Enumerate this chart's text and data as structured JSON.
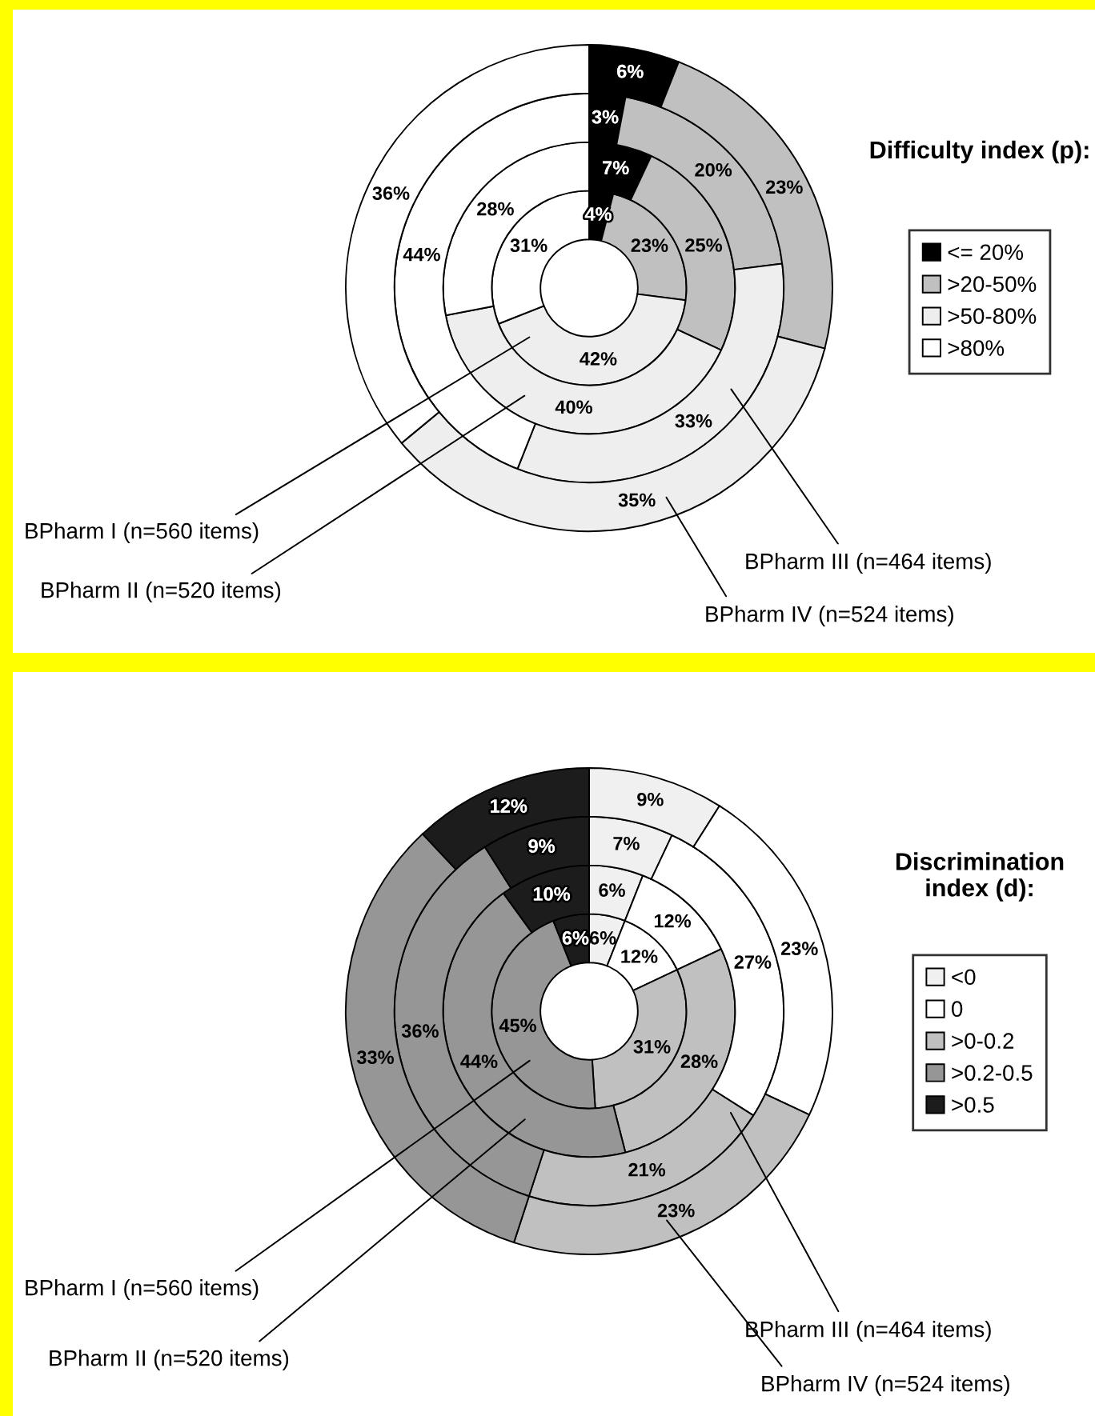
{
  "chart_data": [
    {
      "type": "donut",
      "legend_title": "Difficulty index (p):",
      "legend": "right",
      "categories": [
        "<= 20%",
        ">20-50%",
        ">50-80%",
        ">80%"
      ],
      "colors": [
        "#000000",
        "#c0c0c0",
        "#eeeeee",
        "#ffffff"
      ],
      "series": [
        {
          "name": "BPharm I (n=560 items)",
          "values": [
            4,
            23,
            42,
            31
          ],
          "value_labels": [
            "4%",
            "23%",
            "42%",
            "31%"
          ]
        },
        {
          "name": "BPharm II (n=520 items)",
          "values": [
            7,
            25,
            40,
            28
          ],
          "value_labels": [
            "7%",
            "25%",
            "40%",
            "28%"
          ]
        },
        {
          "name": "BPharm III (n=464 items)",
          "values": [
            3,
            20,
            33,
            44
          ],
          "value_labels": [
            "3%",
            "20%",
            "33%",
            "44%"
          ]
        },
        {
          "name": "BPharm IV (n=524 items)",
          "values": [
            6,
            23,
            35,
            36
          ],
          "value_labels": [
            "6%",
            "23%",
            "35%",
            "36%"
          ]
        }
      ]
    },
    {
      "type": "donut",
      "legend_title": "Discrimination index (d):",
      "legend": "right",
      "categories": [
        "<0",
        "0",
        ">0-0.2",
        ">0.2-0.5",
        ">0.5"
      ],
      "colors": [
        "#f0f0f0",
        "#ffffff",
        "#c0c0c0",
        "#969696",
        "#1c1c1c"
      ],
      "series": [
        {
          "name": "BPharm I (n=560 items)",
          "values": [
            6,
            12,
            31,
            45,
            6
          ],
          "value_labels": [
            "6%",
            "12%",
            "31%",
            "45%",
            "6%"
          ]
        },
        {
          "name": "BPharm II (n=520 items)",
          "values": [
            6,
            12,
            28,
            44,
            10
          ],
          "value_labels": [
            "6%",
            "12%",
            "28%",
            "44%",
            "10%"
          ]
        },
        {
          "name": "BPharm III (n=464 items)",
          "values": [
            7,
            27,
            21,
            36,
            9
          ],
          "value_labels": [
            "7%",
            "27%",
            "21%",
            "36%",
            "9%"
          ]
        },
        {
          "name": "BPharm IV (n=524 items)",
          "values": [
            9,
            23,
            23,
            33,
            12
          ],
          "value_labels": [
            "9%",
            "23%",
            "23%",
            "33%",
            "12%"
          ]
        }
      ]
    }
  ]
}
